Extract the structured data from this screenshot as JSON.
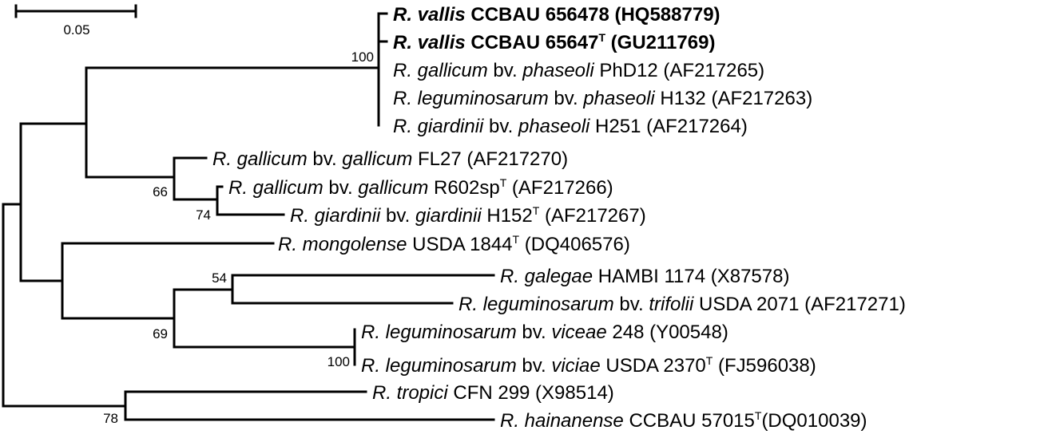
{
  "scale_bar": {
    "label": "0.05"
  },
  "taxa": [
    {
      "parts": [
        {
          "t": "R. vallis",
          "s": "bi"
        },
        {
          "t": " CCBAU 656478 (HQ588779)",
          "s": "b"
        }
      ]
    },
    {
      "parts": [
        {
          "t": "R. vallis",
          "s": "bi"
        },
        {
          "t": " CCBAU 65647",
          "s": "b"
        },
        {
          "t": "T",
          "s": "bsup"
        },
        {
          "t": " (GU211769)",
          "s": "b"
        }
      ]
    },
    {
      "parts": [
        {
          "t": "R. gallicum",
          "s": "i"
        },
        {
          "t": " bv. ",
          "s": "n"
        },
        {
          "t": "phaseoli",
          "s": "i"
        },
        {
          "t": " PhD12 (AF217265)",
          "s": "n"
        }
      ]
    },
    {
      "parts": [
        {
          "t": "R. leguminosarum",
          "s": "i"
        },
        {
          "t": " bv. ",
          "s": "n"
        },
        {
          "t": "phaseoli",
          "s": "i"
        },
        {
          "t": " H132 (AF217263)",
          "s": "n"
        }
      ]
    },
    {
      "parts": [
        {
          "t": "R. giardinii",
          "s": "i"
        },
        {
          "t": " bv. ",
          "s": "n"
        },
        {
          "t": "phaseoli",
          "s": "i"
        },
        {
          "t": " H251 (AF217264)",
          "s": "n"
        }
      ]
    },
    {
      "parts": [
        {
          "t": "R. gallicum",
          "s": "i"
        },
        {
          "t": " bv. ",
          "s": "n"
        },
        {
          "t": "gallicum",
          "s": "i"
        },
        {
          "t": " FL27 (AF217270)",
          "s": "n"
        }
      ]
    },
    {
      "parts": [
        {
          "t": "R. gallicum",
          "s": "i"
        },
        {
          "t": " bv. ",
          "s": "n"
        },
        {
          "t": "gallicum",
          "s": "i"
        },
        {
          "t": " R602sp",
          "s": "n"
        },
        {
          "t": "T",
          "s": "sup"
        },
        {
          "t": " (AF217266)",
          "s": "n"
        }
      ]
    },
    {
      "parts": [
        {
          "t": "R. giardinii",
          "s": "i"
        },
        {
          "t": " bv. ",
          "s": "n"
        },
        {
          "t": "giardinii",
          "s": "i"
        },
        {
          "t": " H152",
          "s": "n"
        },
        {
          "t": "T",
          "s": "sup"
        },
        {
          "t": " (AF217267)",
          "s": "n"
        }
      ]
    },
    {
      "parts": [
        {
          "t": "R. mongolense",
          "s": "i"
        },
        {
          "t": " USDA 1844",
          "s": "n"
        },
        {
          "t": "T",
          "s": "sup"
        },
        {
          "t": " (DQ406576)",
          "s": "n"
        }
      ]
    },
    {
      "parts": [
        {
          "t": "R. galegae",
          "s": "i"
        },
        {
          "t": " HAMBI 1174 (X87578)",
          "s": "n"
        }
      ]
    },
    {
      "parts": [
        {
          "t": "R. leguminosarum",
          "s": "i"
        },
        {
          "t": " bv. ",
          "s": "n"
        },
        {
          "t": "trifolii",
          "s": "i"
        },
        {
          "t": " USDA 2071 (AF217271)",
          "s": "n"
        }
      ]
    },
    {
      "parts": [
        {
          "t": "R. leguminosarum",
          "s": "i"
        },
        {
          "t": " bv. ",
          "s": "n"
        },
        {
          "t": "viceae",
          "s": "i"
        },
        {
          "t": " 248 (Y00548)",
          "s": "n"
        }
      ]
    },
    {
      "parts": [
        {
          "t": "R. leguminosarum",
          "s": "i"
        },
        {
          "t": " bv. ",
          "s": "n"
        },
        {
          "t": "viciae",
          "s": "i"
        },
        {
          "t": " USDA 2370",
          "s": "n"
        },
        {
          "t": "T",
          "s": "sup"
        },
        {
          "t": " (FJ596038)",
          "s": "n"
        }
      ]
    },
    {
      "parts": [
        {
          "t": "R. tropici",
          "s": "i"
        },
        {
          "t": " CFN 299 (X98514)",
          "s": "n"
        }
      ]
    },
    {
      "parts": [
        {
          "t": "R. hainanense",
          "s": "i"
        },
        {
          "t": " CCBAU 57015",
          "s": "n"
        },
        {
          "t": "T",
          "s": "sup"
        },
        {
          "t": "(DQ010039)",
          "s": "n"
        }
      ]
    }
  ],
  "bootstrap": [
    "100",
    "66",
    "74",
    "54",
    "69",
    "100",
    "78"
  ]
}
